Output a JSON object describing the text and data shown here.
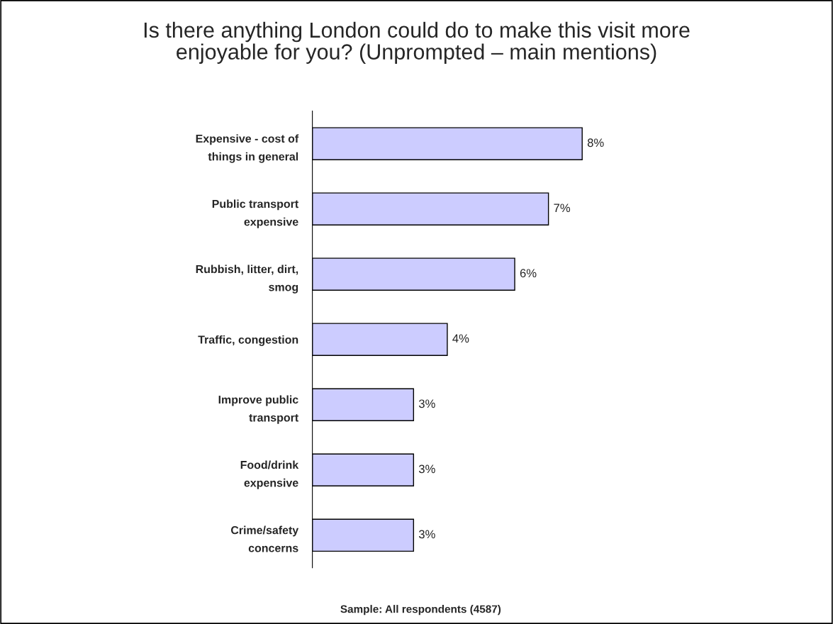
{
  "chart_data": {
    "type": "bar",
    "orientation": "horizontal",
    "title": "Is there anything London could do to make this visit more\nenjoyable for you? (Unprompted – main mentions)",
    "categories": [
      "Expensive - cost of\nthings in general",
      "Public transport\nexpensive",
      "Rubbish, litter, dirt,\nsmog",
      "Traffic, congestion",
      "Improve public\ntransport",
      "Food/drink\nexpensive",
      "Crime/safety\nconcerns"
    ],
    "values": [
      8,
      7,
      6,
      4,
      3,
      3,
      3
    ],
    "value_labels": [
      "8%",
      "7%",
      "6%",
      "4%",
      "3%",
      "3%",
      "3%"
    ],
    "color": "#ccccff",
    "annotations": [
      "Sample: All respondents (4587)"
    ]
  }
}
